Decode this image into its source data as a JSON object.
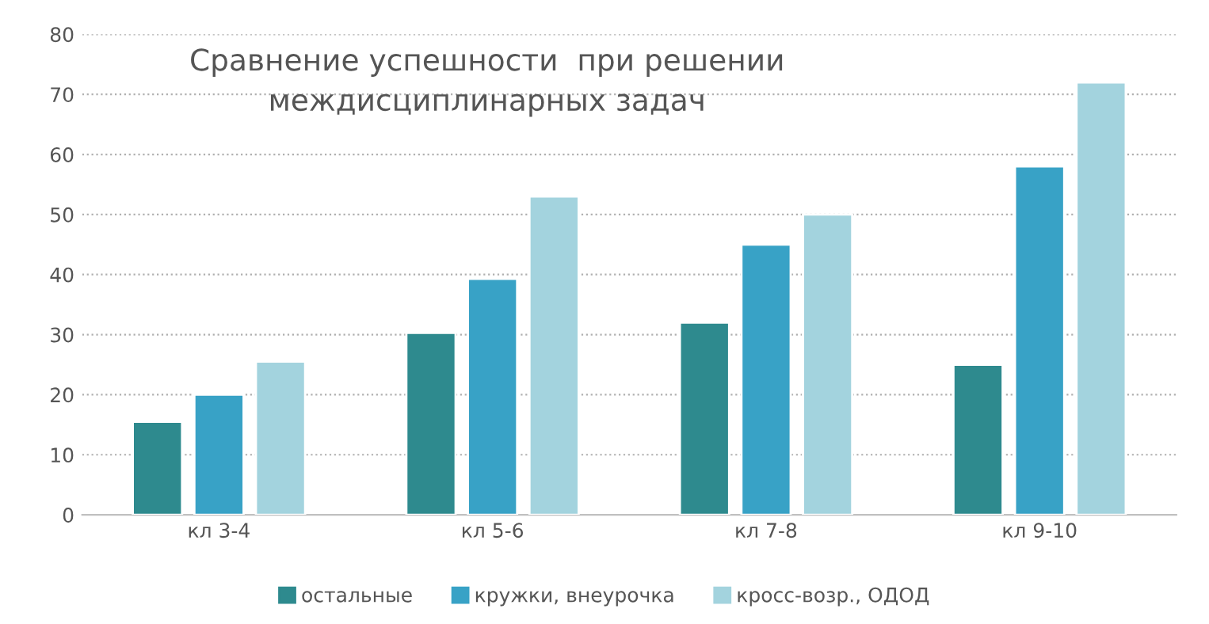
{
  "chart_data": {
    "type": "bar",
    "title": "Сравнение успешности  при решении\nмеждисциплинарных задач",
    "categories": [
      "кл 3-4",
      "кл 5-6",
      "кл 7-8",
      "кл 9-10"
    ],
    "series": [
      {
        "name": "остальные",
        "color": "#2e8a8e",
        "values": [
          15.5,
          30.3,
          32,
          25
        ]
      },
      {
        "name": "кружки, внеурочка",
        "color": "#38a2c6",
        "values": [
          20,
          39.3,
          45,
          58
        ]
      },
      {
        "name": "кросс-возр., ОДОД",
        "color": "#a3d3de",
        "values": [
          25.5,
          53,
          50,
          72
        ]
      }
    ],
    "ylim": [
      0,
      80
    ],
    "yticks": [
      0,
      10,
      20,
      30,
      40,
      50,
      60,
      70,
      80
    ],
    "grid": "y",
    "legend": "bottom"
  }
}
